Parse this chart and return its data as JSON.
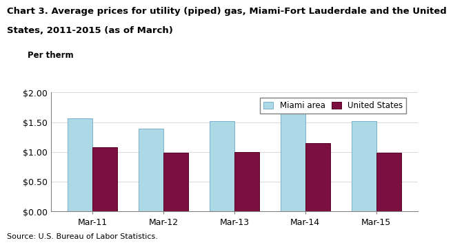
{
  "title_line1": "Chart 3. Average prices for utility (piped) gas, Miami-Fort Lauderdale and the United",
  "title_line2": "States, 2011-2015 (as of March)",
  "ylabel_text": "Per therm",
  "source": "Source: U.S. Bureau of Labor Statistics.",
  "categories": [
    "Mar-11",
    "Mar-12",
    "Mar-13",
    "Mar-14",
    "Mar-15"
  ],
  "miami_values": [
    1.565,
    1.39,
    1.52,
    1.645,
    1.525
  ],
  "us_values": [
    1.085,
    0.985,
    1.0,
    1.15,
    0.985
  ],
  "miami_color": "#ADD8E6",
  "us_color": "#7B1040",
  "miami_edge": "#7ab0cc",
  "us_edge": "#5a0028",
  "miami_label": "Miami area",
  "us_label": "United States",
  "ylim": [
    0,
    2.0
  ],
  "yticks": [
    0.0,
    0.5,
    1.0,
    1.5,
    2.0
  ],
  "ytick_labels": [
    "$0.00",
    "$0.50",
    "$1.00",
    "$1.50",
    "$2.00"
  ],
  "bar_width": 0.35,
  "title_fontsize": 9.5,
  "axis_fontsize": 9,
  "legend_fontsize": 8.5,
  "source_fontsize": 8,
  "ylabel_fontsize": 8.5
}
